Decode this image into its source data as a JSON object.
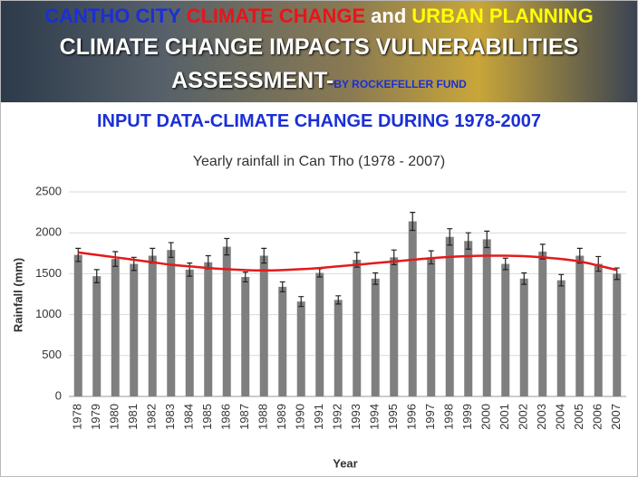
{
  "header": {
    "line1": [
      {
        "text": "CANTHO CITY",
        "color": "#1a2fd6"
      },
      {
        "text": "CLIMATE CHANGE",
        "color": "#e8141b"
      },
      {
        "text": "and",
        "color": "#ffffff"
      },
      {
        "text": "URBAN PLANNING",
        "color": "#ffff00"
      }
    ],
    "line2": "CLIMATE CHANGE IMPACTS VULNERABILITIES",
    "line3": "ASSESSMENT-",
    "line3_suffix": "BY ROCKEFELLER FUND"
  },
  "section_title": "INPUT DATA-CLIMATE CHANGE DURING 1978-2007",
  "chart_data": {
    "type": "bar",
    "title": "Yearly rainfall in Can Tho (1978 - 2007)",
    "x_label": "Year",
    "y_label": "Rainfall (mm)",
    "categories": [
      "1978",
      "1979",
      "1980",
      "1981",
      "1982",
      "1983",
      "1984",
      "1985",
      "1986",
      "1987",
      "1988",
      "1989",
      "1990",
      "1991",
      "1992",
      "1993",
      "1994",
      "1995",
      "1996",
      "1997",
      "1998",
      "1999",
      "2000",
      "2001",
      "2002",
      "2003",
      "2004",
      "2005",
      "2006",
      "2007"
    ],
    "values": [
      1730,
      1470,
      1680,
      1620,
      1720,
      1790,
      1550,
      1640,
      1830,
      1460,
      1720,
      1340,
      1160,
      1510,
      1180,
      1670,
      1440,
      1700,
      2140,
      1700,
      1950,
      1900,
      1920,
      1620,
      1440,
      1770,
      1420,
      1720,
      1620,
      1500
    ],
    "errors": [
      80,
      80,
      90,
      80,
      90,
      90,
      80,
      80,
      100,
      60,
      90,
      60,
      60,
      50,
      50,
      90,
      70,
      90,
      110,
      80,
      100,
      100,
      100,
      70,
      70,
      90,
      70,
      90,
      90,
      70
    ],
    "color": "#7f7f7f",
    "trend": {
      "color": "#e31a1c",
      "values": [
        1760,
        1730,
        1700,
        1670,
        1640,
        1610,
        1590,
        1570,
        1555,
        1545,
        1540,
        1545,
        1555,
        1570,
        1590,
        1610,
        1630,
        1650,
        1670,
        1690,
        1705,
        1715,
        1720,
        1720,
        1715,
        1700,
        1680,
        1650,
        1600,
        1545
      ]
    },
    "ylim": [
      0,
      2500
    ],
    "yticks": [
      0,
      500,
      1000,
      1500,
      2000,
      2500
    ],
    "grid": true
  }
}
